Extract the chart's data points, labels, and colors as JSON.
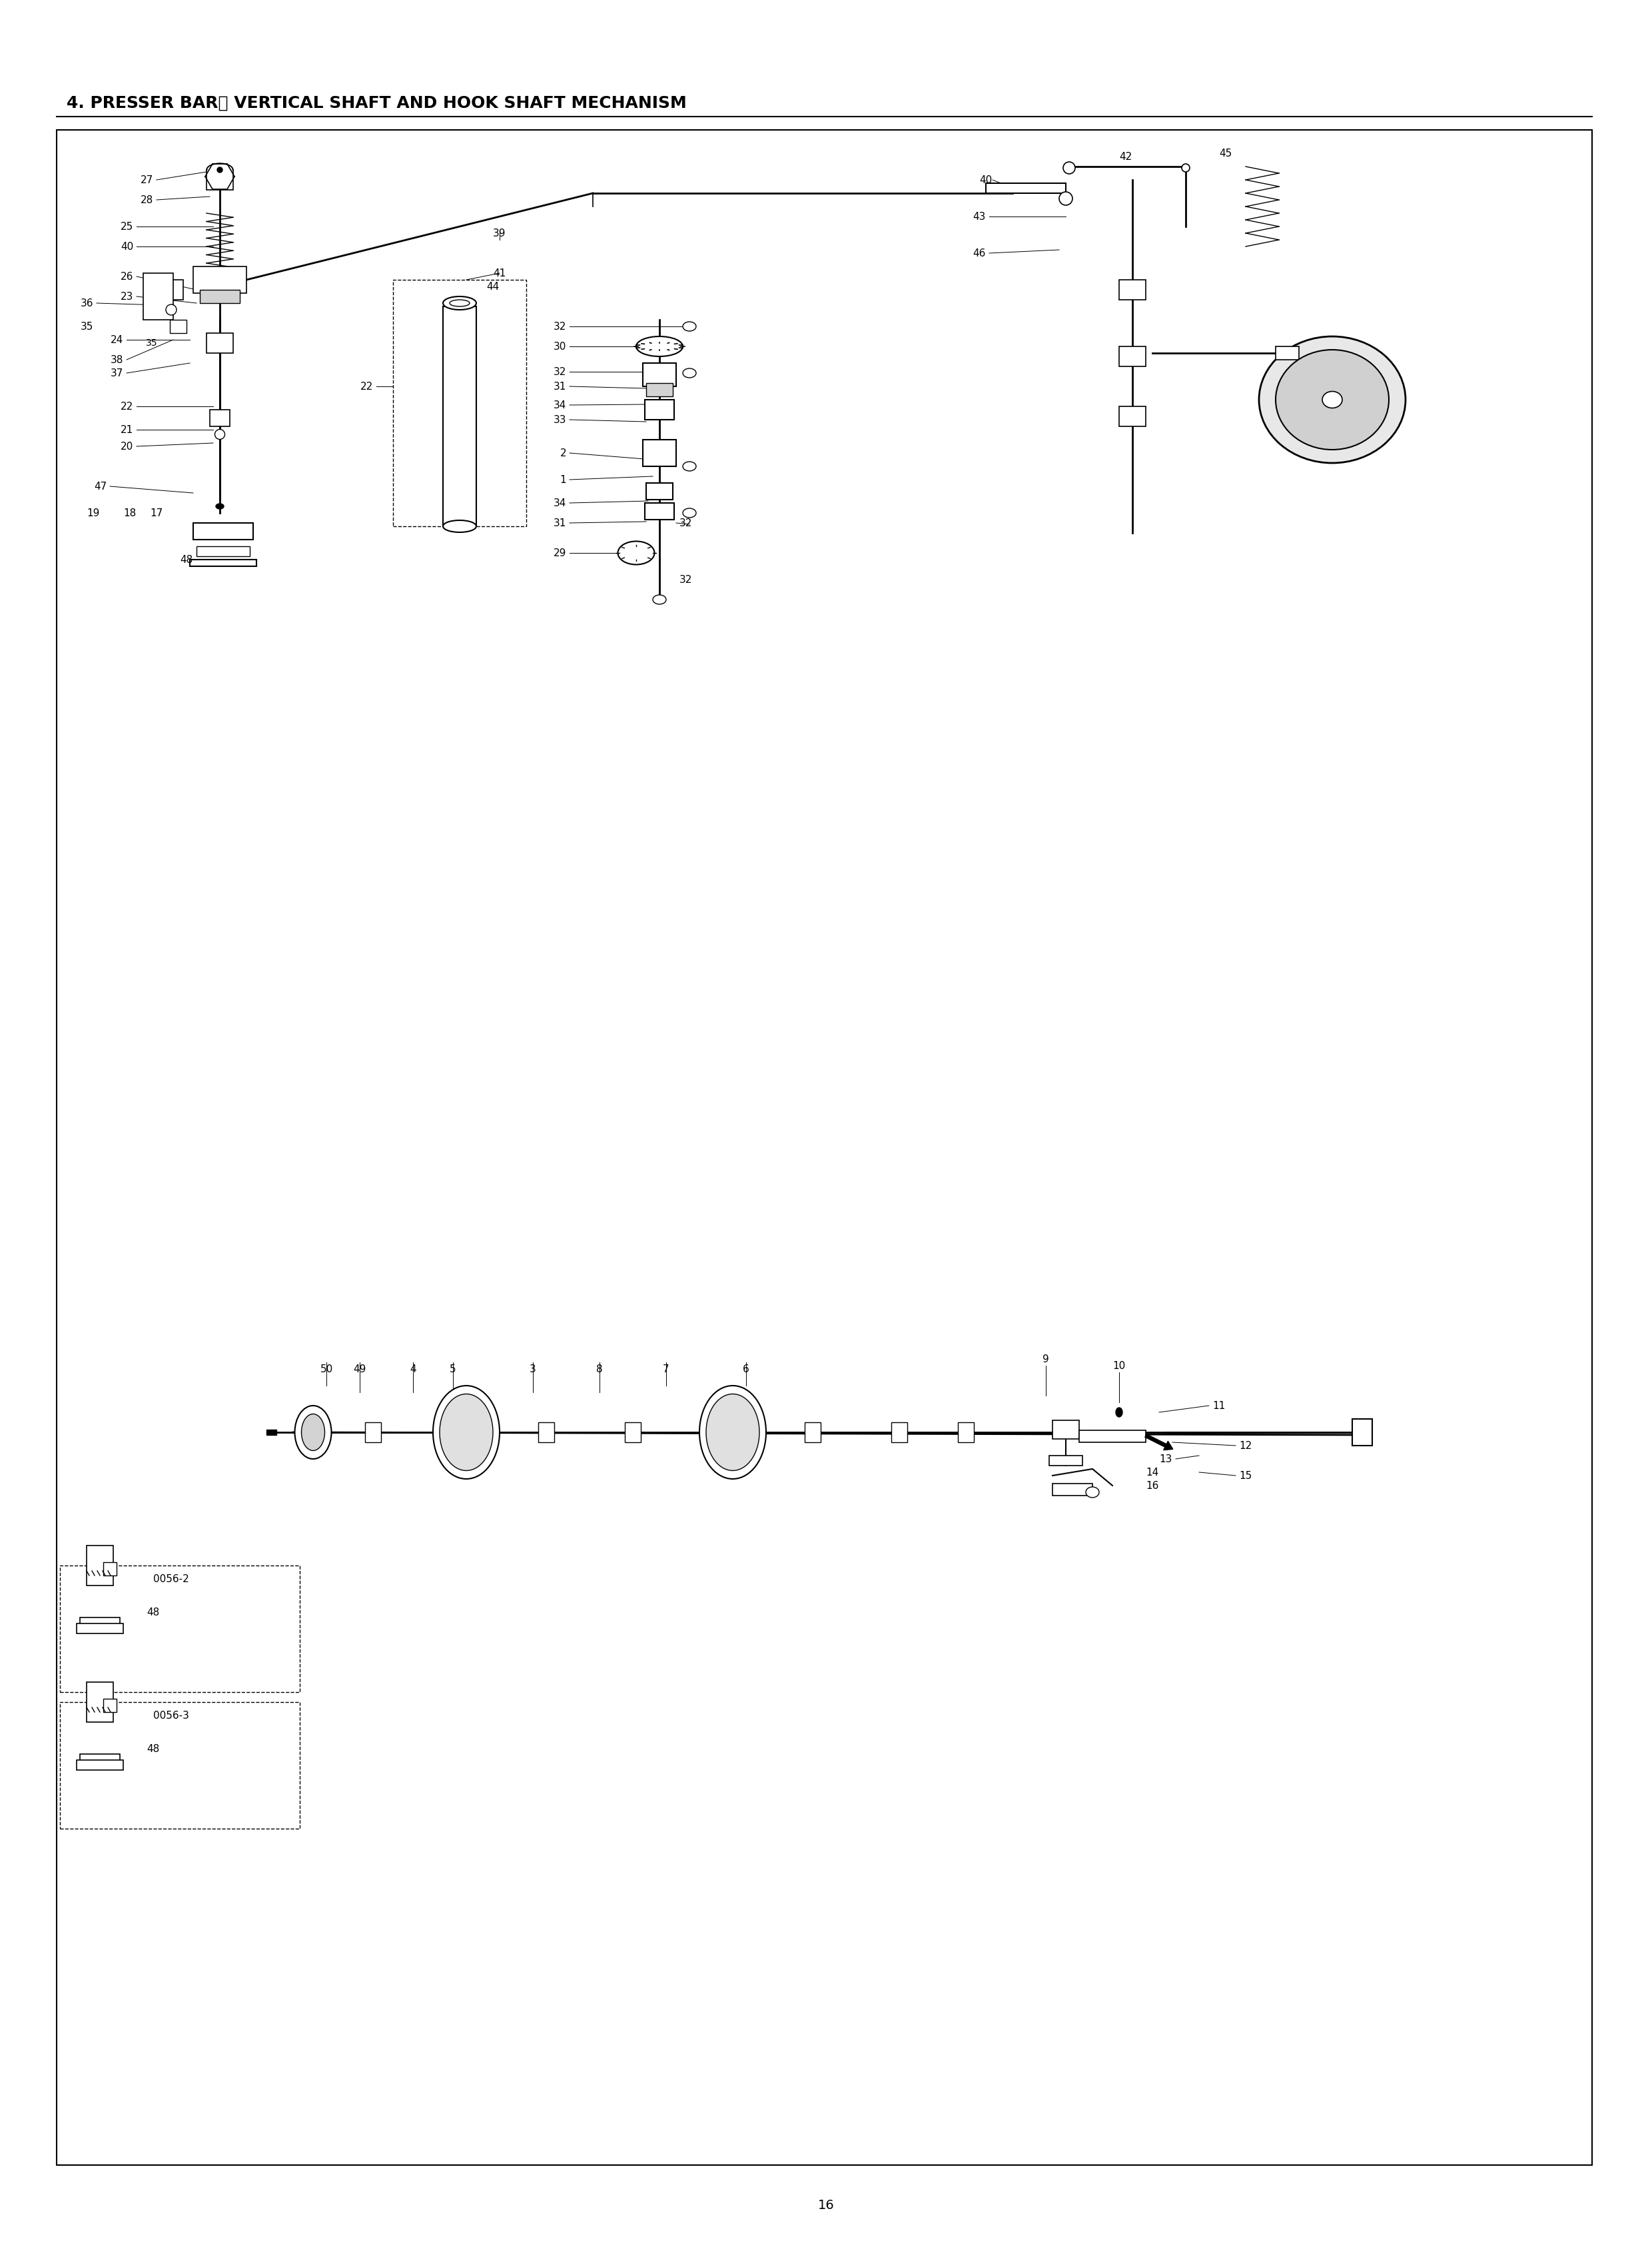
{
  "title": "4. PRESSER BAR、 VERTICAL SHAFT AND HOOK SHAFT MECHANISM",
  "page_number": "16",
  "background_color": "#ffffff",
  "border_color": "#000000",
  "text_color": "#000000",
  "title_fontsize": 18,
  "body_fontsize": 11,
  "fig_width": 24.8,
  "fig_height": 33.88
}
